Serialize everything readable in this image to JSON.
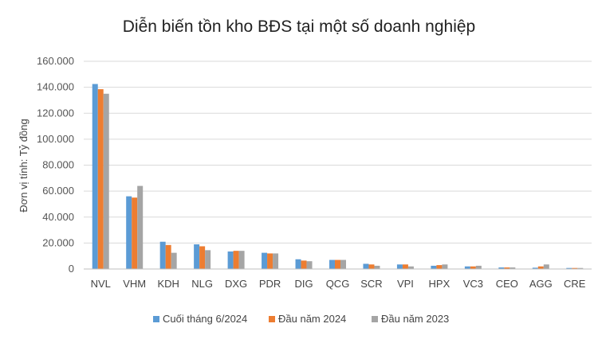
{
  "chart_data": {
    "type": "bar",
    "title": "Diễn biến tồn kho BĐS tại một số doanh nghiệp",
    "xlabel": "",
    "ylabel": "Đơn vị tính: Tỷ đồng",
    "ylim": [
      0,
      160000
    ],
    "yticks": [
      0,
      20000,
      40000,
      60000,
      80000,
      100000,
      120000,
      140000,
      160000
    ],
    "ytick_labels": [
      "0",
      "20.000",
      "40.000",
      "60.000",
      "80.000",
      "100.000",
      "120.000",
      "140.000",
      "160.000"
    ],
    "grid": true,
    "legend_position": "bottom",
    "categories": [
      "NVL",
      "VHM",
      "KDH",
      "NLG",
      "DXG",
      "PDR",
      "DIG",
      "QCG",
      "SCR",
      "VPI",
      "HPX",
      "VC3",
      "CEO",
      "AGG",
      "CRE"
    ],
    "series": [
      {
        "name": "Cuối tháng 6/2024",
        "color": "#5B9BD5",
        "values": [
          142500,
          56000,
          21000,
          19000,
          13500,
          12500,
          7500,
          7000,
          4000,
          3500,
          2500,
          2000,
          1200,
          1000,
          800
        ]
      },
      {
        "name": "Đầu năm 2024",
        "color": "#ED7D31",
        "values": [
          138500,
          55000,
          18500,
          17500,
          14000,
          12000,
          6500,
          7000,
          3500,
          3500,
          3000,
          2000,
          1200,
          2000,
          800
        ]
      },
      {
        "name": "Đầu năm 2023",
        "color": "#A5A5A5",
        "values": [
          135000,
          64000,
          12500,
          14500,
          14000,
          12000,
          6000,
          7000,
          2500,
          2000,
          3500,
          2500,
          1200,
          3500,
          800
        ]
      }
    ]
  }
}
